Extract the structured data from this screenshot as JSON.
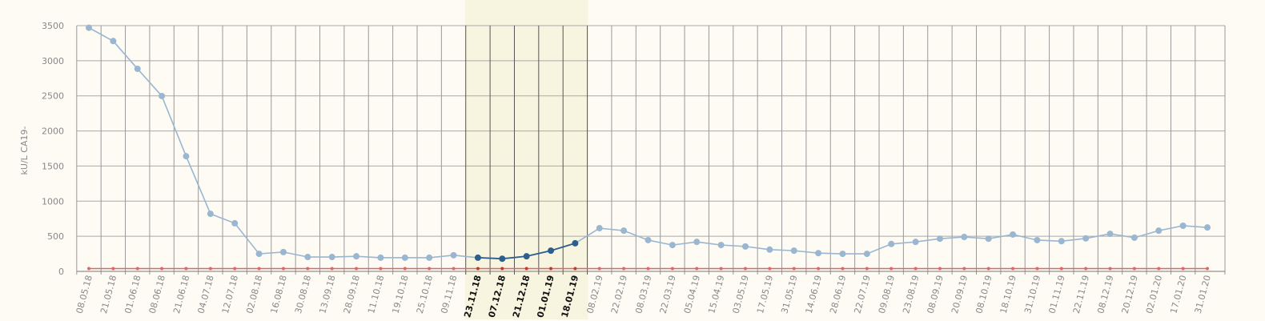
{
  "chart_data": {
    "type": "line",
    "y_label": "kU/L CA19-",
    "categories": [
      "08.05.18",
      "21.05.18",
      "01.06.18",
      "08.06.18",
      "21.06.18",
      "04.07.18",
      "12.07.18",
      "02.08.18",
      "16.08.18",
      "30.08.18",
      "13.09.18",
      "28.09.18",
      "11.10.18",
      "19.10.18",
      "25.10.18",
      "09.11.18",
      "23.11.18",
      "07.12.18",
      "21.12.18",
      "01.01.19",
      "18.01.19",
      "08.02.19",
      "22.02.19",
      "08.03.19",
      "22.03.19",
      "05.04.19",
      "15.04.19",
      "03.05.19",
      "17.05.19",
      "31.05.19",
      "14.06.19",
      "28.06.19",
      "22.07.19",
      "09.08.19",
      "23.08.19",
      "08.09.19",
      "20.09.19",
      "08.10.19",
      "18.10.19",
      "31.10.19",
      "01.11.19",
      "22.11.19",
      "08.12.19",
      "20.12.19",
      "02.01.20",
      "17.01.20",
      "31.01.20"
    ],
    "series": [
      {
        "color": "#9ab6d0",
        "highlight_color": "#2d5f8e",
        "values": [
          3470,
          3280,
          2885,
          2497,
          1640,
          820,
          685,
          250,
          275,
          205,
          205,
          215,
          195,
          195,
          195,
          230,
          195,
          180,
          215,
          295,
          400,
          615,
          580,
          445,
          375,
          420,
          375,
          355,
          310,
          295,
          260,
          250,
          250,
          390,
          420,
          465,
          490,
          465,
          525,
          445,
          430,
          470,
          535,
          480,
          580,
          650,
          625
        ]
      },
      {
        "color": "#e06666",
        "values": [
          40,
          40,
          40,
          40,
          40,
          40,
          40,
          40,
          40,
          40,
          40,
          40,
          40,
          40,
          40,
          40,
          40,
          40,
          40,
          40,
          40,
          40,
          40,
          40,
          40,
          40,
          40,
          40,
          40,
          40,
          40,
          40,
          40,
          40,
          40,
          40,
          40,
          40,
          40,
          40,
          40,
          40,
          40,
          40,
          40,
          40,
          40
        ]
      }
    ],
    "highlight": {
      "from": 16,
      "to": 20,
      "color": "#f7f4e0"
    },
    "ylim": [
      0,
      3500
    ],
    "yticks": [
      0,
      500,
      1000,
      1500,
      2000,
      2500,
      3000,
      3500
    ],
    "grid": true
  }
}
